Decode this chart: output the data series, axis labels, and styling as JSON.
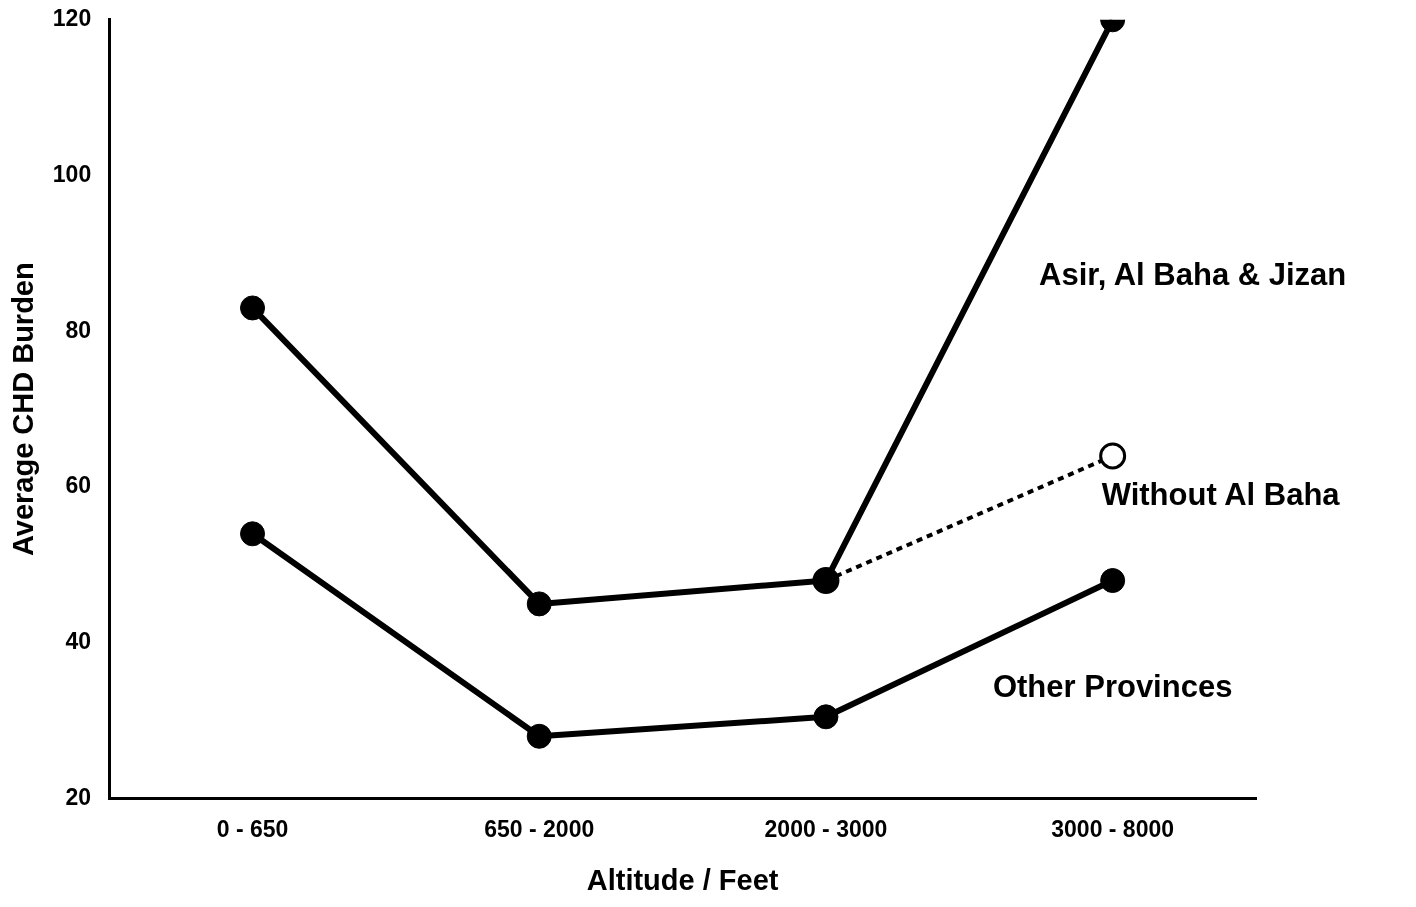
{
  "chart_data": {
    "type": "line",
    "xlabel": "Altitude / Feet",
    "ylabel": "Average CHD Burden",
    "categories": [
      "0 - 650",
      "650 - 2000",
      "2000 - 3000",
      "3000 - 8000"
    ],
    "ylim": [
      20,
      120
    ],
    "yticks": [
      20,
      40,
      60,
      80,
      100,
      120
    ],
    "grid": false,
    "legend": false,
    "marker": "circle",
    "series": [
      {
        "name": "Asir, Al Baha & Jizan",
        "color": "#000000",
        "values": [
          83,
          45,
          48,
          120
        ]
      },
      {
        "name": "Without Al Baha",
        "color": "#000000",
        "values": [
          null,
          null,
          48,
          64
        ],
        "line_style": "dashed"
      },
      {
        "name": "Other Provinces",
        "color": "#000000",
        "values": [
          54,
          28,
          30.5,
          48
        ]
      }
    ]
  }
}
